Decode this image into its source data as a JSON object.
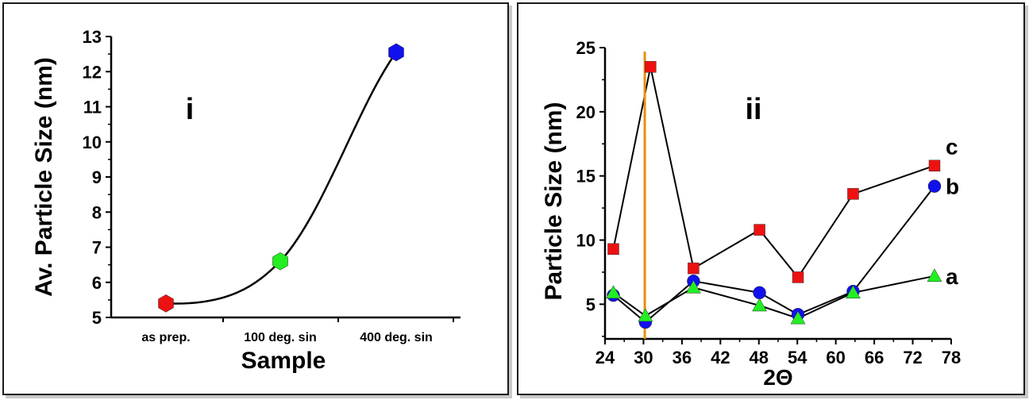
{
  "chart_data": [
    {
      "type": "line",
      "panel_label": "i",
      "xlabel": "Sample",
      "ylabel": "Av. Particle Size (nm)",
      "categories": [
        "as prep.",
        "100 deg. sin",
        "400 deg. sin"
      ],
      "values": [
        5.4,
        6.6,
        12.55
      ],
      "point_colors": [
        "#ee1111",
        "#22ee22",
        "#1111ee"
      ],
      "marker": "hexagon",
      "ylim": [
        5,
        13
      ],
      "yticks": [
        "5",
        "6",
        "7",
        "8",
        "9",
        "10",
        "11",
        "12",
        "13"
      ],
      "grid": false,
      "legend": "none"
    },
    {
      "type": "line",
      "panel_label": "ii",
      "xlabel": "2Θ",
      "ylabel": "Particle Size (nm)",
      "xlim": [
        24,
        78
      ],
      "ylim": [
        2.3,
        25
      ],
      "xticks": [
        "24",
        "30",
        "36",
        "42",
        "48",
        "54",
        "60",
        "66",
        "72",
        "78"
      ],
      "yticks": [
        "5",
        "10",
        "15",
        "20",
        "25"
      ],
      "vline_x": 30.2,
      "vline_color": "#e8900a",
      "grid": false,
      "series": [
        {
          "name": "c",
          "color": "#ee1111",
          "marker": "square",
          "x": [
            25.3,
            31.1,
            37.8,
            48.1,
            54.1,
            62.7,
            75.4
          ],
          "y": [
            9.3,
            23.5,
            7.8,
            10.8,
            7.1,
            13.6,
            15.8
          ]
        },
        {
          "name": "b",
          "color": "#1111ee",
          "marker": "circle",
          "x": [
            25.3,
            30.3,
            37.8,
            48.1,
            54.1,
            62.7,
            75.4
          ],
          "y": [
            5.7,
            3.6,
            6.8,
            5.9,
            4.2,
            6.0,
            14.2
          ]
        },
        {
          "name": "a",
          "color": "#22ee22",
          "marker": "triangle",
          "x": [
            25.3,
            30.3,
            37.8,
            48.1,
            54.1,
            62.7,
            75.4
          ],
          "y": [
            5.9,
            4.1,
            6.3,
            4.9,
            3.9,
            5.9,
            7.2
          ]
        }
      ]
    }
  ]
}
